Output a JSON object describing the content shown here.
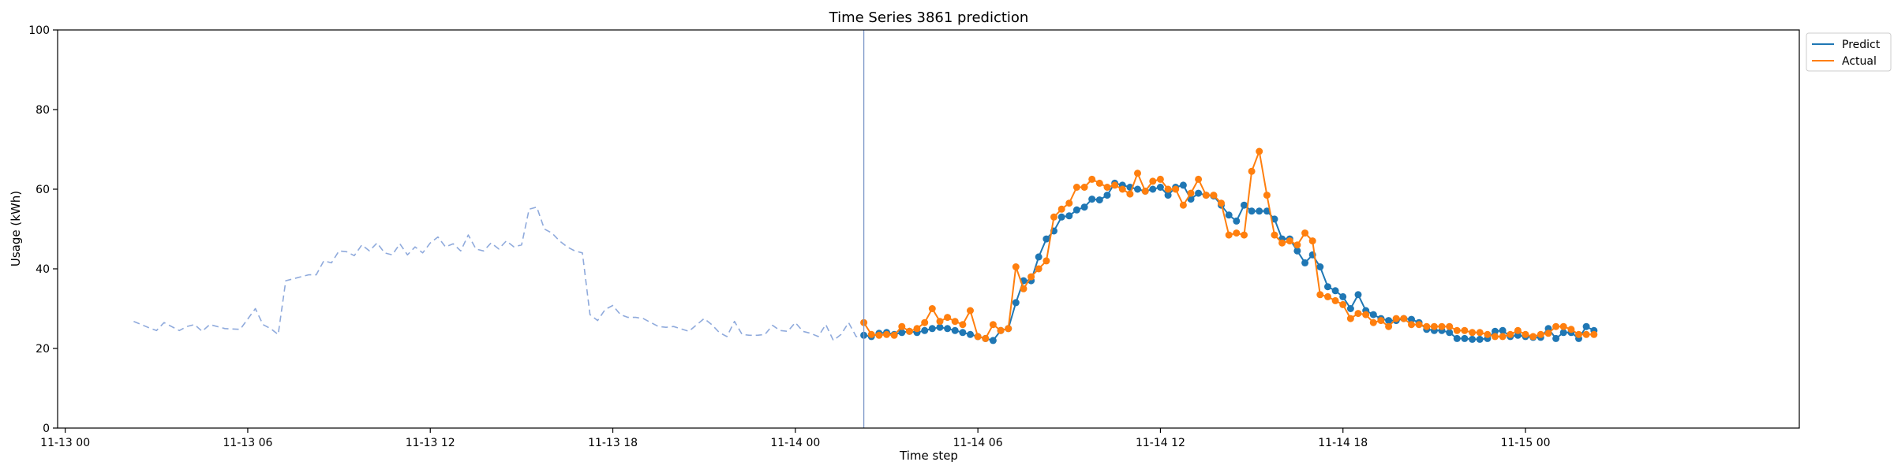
{
  "chart_data": {
    "type": "line",
    "title": "Time Series 3861 prediction",
    "xlabel": "Time step",
    "ylabel": "Usage (kWh)",
    "ylim": [
      0,
      100
    ],
    "yticks": [
      0,
      20,
      40,
      60,
      80,
      100
    ],
    "xlim": [
      "2023-11-12T23:45",
      "2023-11-15T09:00"
    ],
    "xticks": [
      {
        "t": "2023-11-13T00:00",
        "label": "11-13 00"
      },
      {
        "t": "2023-11-13T06:00",
        "label": "11-13 06"
      },
      {
        "t": "2023-11-13T12:00",
        "label": "11-13 12"
      },
      {
        "t": "2023-11-13T18:00",
        "label": "11-13 18"
      },
      {
        "t": "2023-11-14T00:00",
        "label": "11-14 00"
      },
      {
        "t": "2023-11-14T06:00",
        "label": "11-14 06"
      },
      {
        "t": "2023-11-14T12:00",
        "label": "11-14 12"
      },
      {
        "t": "2023-11-14T18:00",
        "label": "11-14 18"
      },
      {
        "t": "2023-11-15T00:00",
        "label": "11-15 00"
      }
    ],
    "legend_position": "top-right-outside",
    "grid": false,
    "forecast_start": "2023-11-14T02:15",
    "series": [
      {
        "name": "",
        "role": "history",
        "style": "dashed",
        "color": "#8faadc",
        "x": [
          "2023-11-13T02:15",
          "2023-11-13T02:45",
          "2023-11-13T03:00",
          "2023-11-13T03:15",
          "2023-11-13T03:45",
          "2023-11-13T04:00",
          "2023-11-13T04:15",
          "2023-11-13T04:30",
          "2023-11-13T04:45",
          "2023-11-13T05:15",
          "2023-11-13T05:45",
          "2023-11-13T06:15",
          "2023-11-13T06:30",
          "2023-11-13T06:45",
          "2023-11-13T07:00",
          "2023-11-13T07:15",
          "2023-11-13T07:30",
          "2023-11-13T08:00",
          "2023-11-13T08:15",
          "2023-11-13T08:30",
          "2023-11-13T08:45",
          "2023-11-13T09:00",
          "2023-11-13T09:15",
          "2023-11-13T09:30",
          "2023-11-13T09:45",
          "2023-11-13T10:00",
          "2023-11-13T10:15",
          "2023-11-13T10:30",
          "2023-11-13T10:45",
          "2023-11-13T11:00",
          "2023-11-13T11:15",
          "2023-11-13T11:30",
          "2023-11-13T11:45",
          "2023-11-13T12:00",
          "2023-11-13T12:15",
          "2023-11-13T12:30",
          "2023-11-13T12:45",
          "2023-11-13T13:00",
          "2023-11-13T13:15",
          "2023-11-13T13:30",
          "2023-11-13T13:45",
          "2023-11-13T14:00",
          "2023-11-13T14:15",
          "2023-11-13T14:30",
          "2023-11-13T14:45",
          "2023-11-13T15:00",
          "2023-11-13T15:15",
          "2023-11-13T15:30",
          "2023-11-13T15:45",
          "2023-11-13T16:00",
          "2023-11-13T16:15",
          "2023-11-13T16:30",
          "2023-11-13T16:45",
          "2023-11-13T17:00",
          "2023-11-13T17:15",
          "2023-11-13T17:30",
          "2023-11-13T17:45",
          "2023-11-13T18:00",
          "2023-11-13T18:15",
          "2023-11-13T18:30",
          "2023-11-13T18:45",
          "2023-11-13T19:00",
          "2023-11-13T19:30",
          "2023-11-13T19:45",
          "2023-11-13T20:00",
          "2023-11-13T20:30",
          "2023-11-13T21:00",
          "2023-11-13T21:15",
          "2023-11-13T21:30",
          "2023-11-13T21:45",
          "2023-11-13T22:00",
          "2023-11-13T22:15",
          "2023-11-13T22:30",
          "2023-11-13T22:45",
          "2023-11-13T23:00",
          "2023-11-13T23:15",
          "2023-11-13T23:30",
          "2023-11-13T23:45",
          "2023-11-14T00:00",
          "2023-11-14T00:15",
          "2023-11-14T00:30",
          "2023-11-14T00:45",
          "2023-11-14T01:00",
          "2023-11-14T01:15",
          "2023-11-14T01:30",
          "2023-11-14T01:45",
          "2023-11-14T02:00",
          "2023-11-14T02:15"
        ],
        "values": [
          26.8,
          25.2,
          24.5,
          26.5,
          24.5,
          25.5,
          26.0,
          24.3,
          26.0,
          25.0,
          24.8,
          30.0,
          26.0,
          25.0,
          23.5,
          37.0,
          37.5,
          38.5,
          38.5,
          42.0,
          41.5,
          44.5,
          44.3,
          43.3,
          46.0,
          44.5,
          46.5,
          44.0,
          43.5,
          46.3,
          43.5,
          45.5,
          44.0,
          46.5,
          48.0,
          45.5,
          46.3,
          44.5,
          48.5,
          45.0,
          44.5,
          46.5,
          45.0,
          47.0,
          45.5,
          46.0,
          55.0,
          55.5,
          50.0,
          49.0,
          47.0,
          45.5,
          44.5,
          44.0,
          28.5,
          27.0,
          29.8,
          30.8,
          28.5,
          27.8,
          27.8,
          27.5,
          25.5,
          25.3,
          25.5,
          24.3,
          27.5,
          26.0,
          24.0,
          23.0,
          26.8,
          23.5,
          23.3,
          23.3,
          23.5,
          25.8,
          24.5,
          24.3,
          26.5,
          24.3,
          23.8,
          23.0,
          26.0,
          22.0,
          23.5,
          26.5,
          23.0,
          23.0
        ]
      },
      {
        "name": "Predict",
        "role": "prediction",
        "style": "solid-markers",
        "color": "#1f77b4",
        "x_start": "2023-11-14T02:15",
        "step_minutes": 15,
        "values": [
          23.3,
          23.0,
          23.8,
          24.0,
          23.5,
          24.0,
          24.3,
          24.0,
          24.5,
          25.0,
          25.3,
          25.0,
          24.5,
          24.0,
          23.5,
          23.0,
          22.5,
          22.0,
          24.5,
          25.0,
          31.5,
          37.0,
          37.0,
          43.0,
          47.5,
          49.5,
          53.0,
          53.3,
          54.8,
          55.5,
          57.5,
          57.3,
          58.5,
          61.5,
          61.0,
          60.5,
          60.0,
          59.5,
          60.0,
          60.5,
          58.5,
          60.5,
          61.0,
          57.5,
          59.0,
          58.5,
          58.3,
          56.0,
          53.5,
          52.0,
          56.0,
          54.5,
          54.5,
          54.5,
          52.5,
          47.5,
          47.5,
          44.5,
          41.5,
          43.5,
          40.5,
          35.5,
          34.5,
          33.0,
          30.0,
          33.5,
          29.5,
          28.5,
          27.5,
          27.0,
          27.0,
          27.5,
          27.3,
          26.5,
          24.8,
          24.5,
          24.5,
          24.0,
          22.5,
          22.5,
          22.3,
          22.3,
          22.5,
          24.3,
          24.5,
          23.0,
          23.3,
          23.0,
          22.8,
          22.8,
          25.0,
          22.5,
          24.0,
          24.0,
          22.5,
          25.5,
          24.5
        ]
      },
      {
        "name": "Actual",
        "role": "actual",
        "style": "solid-markers",
        "color": "#ff7f0e",
        "x_start": "2023-11-14T02:15",
        "step_minutes": 15,
        "values": [
          26.5,
          23.5,
          23.3,
          23.5,
          23.3,
          25.5,
          24.3,
          25.0,
          26.5,
          30.0,
          26.8,
          27.8,
          26.8,
          26.0,
          29.5,
          23.0,
          22.5,
          26.0,
          24.5,
          25.0,
          40.5,
          35.0,
          38.0,
          40.0,
          42.0,
          53.0,
          55.0,
          56.5,
          60.5,
          60.5,
          62.5,
          61.5,
          60.5,
          61.0,
          60.0,
          58.8,
          64.0,
          59.5,
          62.0,
          62.5,
          60.0,
          60.0,
          56.0,
          59.0,
          62.5,
          58.5,
          58.5,
          56.5,
          48.5,
          49.0,
          48.5,
          64.5,
          69.5,
          58.5,
          48.5,
          46.5,
          47.0,
          46.0,
          49.0,
          47.0,
          33.5,
          33.0,
          32.0,
          31.0,
          27.5,
          28.8,
          28.5,
          26.5,
          27.0,
          25.5,
          27.5,
          27.5,
          26.0,
          26.0,
          25.5,
          25.5,
          25.5,
          25.5,
          24.5,
          24.5,
          24.0,
          24.0,
          23.5,
          23.0,
          23.0,
          23.5,
          24.5,
          23.5,
          23.0,
          23.5,
          23.8,
          25.5,
          25.5,
          24.8,
          23.5,
          23.5,
          23.5
        ]
      }
    ]
  }
}
